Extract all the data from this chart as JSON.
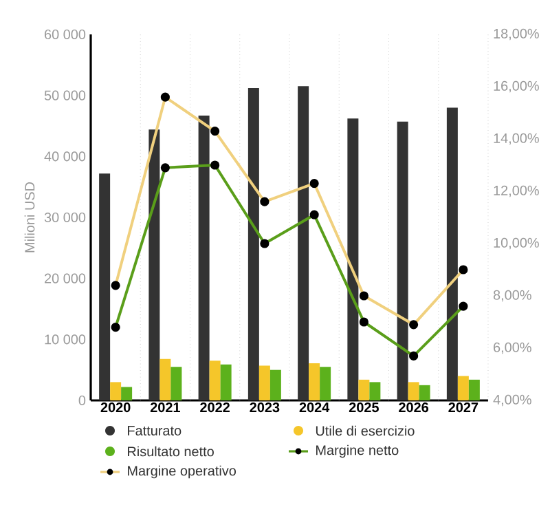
{
  "chart_data": {
    "type": "bar",
    "ylabel": "Milioni USD",
    "categories": [
      "2020",
      "2021",
      "2022",
      "2023",
      "2024",
      "2025",
      "2026",
      "2027"
    ],
    "series": [
      {
        "name": "Fatturato",
        "color": "#333333",
        "values": [
          37200,
          44400,
          46700,
          51200,
          51500,
          46200,
          45700,
          48000
        ]
      },
      {
        "name": "Utile di esercizio",
        "color": "#f5c62a",
        "values": [
          3000,
          6800,
          6500,
          5700,
          6100,
          3400,
          3000,
          4000
        ]
      },
      {
        "name": "Risultato netto",
        "color": "#5cb11c",
        "values": [
          2200,
          5500,
          5900,
          5000,
          5500,
          3000,
          2500,
          3400
        ]
      },
      {
        "name": "Margine netto",
        "type": "line",
        "axis": "y2",
        "color": "#5a9e1a",
        "values": [
          6.8,
          12.9,
          13.0,
          10.0,
          11.1,
          7.0,
          5.7,
          7.6
        ]
      },
      {
        "name": "Margine operativo",
        "type": "line",
        "axis": "y2",
        "color": "#f0d07e",
        "values": [
          8.4,
          15.6,
          14.3,
          11.6,
          12.3,
          8.0,
          6.9,
          9.0
        ]
      }
    ],
    "ylim": [
      0,
      60000
    ],
    "yticks": [
      0,
      {
        "value": 10000,
        "label": "10 000"
      },
      {
        "value": 20000,
        "label": "20 000"
      },
      {
        "value": 30000,
        "label": "30 000"
      },
      {
        "value": 40000,
        "label": "40 000"
      },
      {
        "value": 50000,
        "label": "50 000"
      },
      {
        "value": 60000,
        "label": "60 000"
      }
    ],
    "y2lim": [
      4,
      18
    ],
    "y2ticks": [
      {
        "value": 4,
        "label": "4,00%"
      },
      {
        "value": 6,
        "label": "6,00%"
      },
      {
        "value": 8,
        "label": "8,00%"
      },
      {
        "value": 10,
        "label": "10,00%"
      },
      {
        "value": 12,
        "label": "12,00%"
      },
      {
        "value": 14,
        "label": "14,00%"
      },
      {
        "value": 16,
        "label": "16,00%"
      },
      {
        "value": 18,
        "label": "18,00%"
      }
    ],
    "grid": "x",
    "legend": "bottom",
    "marker": "circle",
    "line_style": "solid"
  }
}
